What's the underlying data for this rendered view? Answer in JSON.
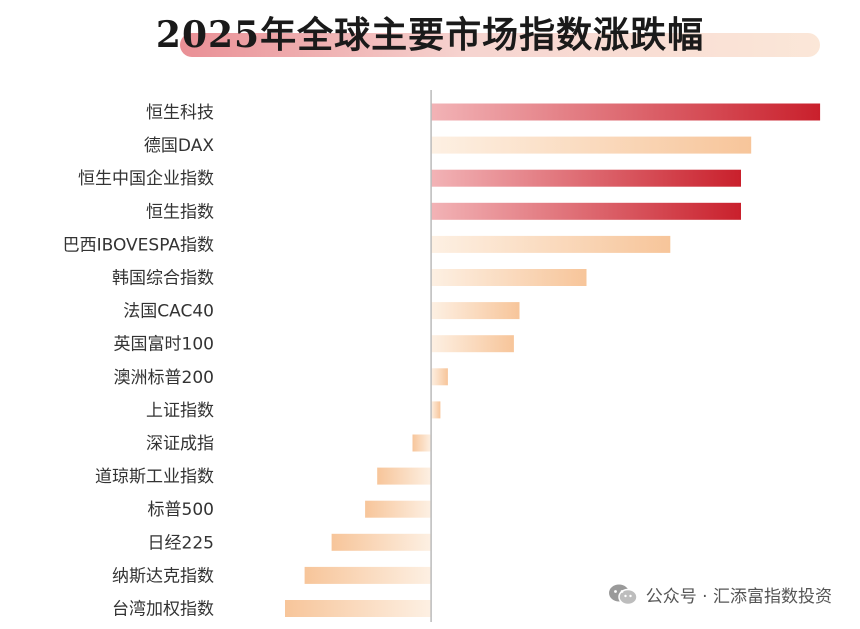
{
  "chart_data": {
    "type": "bar",
    "orientation": "horizontal",
    "title": "2025年全球主要市场指数涨跌幅",
    "xlabel": "",
    "ylabel": "",
    "categories": [
      "恒生科技",
      "德国DAX",
      "恒生中国企业指数",
      "恒生指数",
      "巴西IBOVESPA指数",
      "韩国综合指数",
      "法国CAC40",
      "英国富时100",
      "澳洲标普200",
      "上证指数",
      "深证成指",
      "道琼斯工业指数",
      "标普500",
      "日经225",
      "纳斯达克指数",
      "台湾加权指数"
    ],
    "values": [
      41.8,
      34.4,
      33.3,
      33.3,
      25.7,
      16.7,
      9.5,
      8.9,
      1.8,
      1.0,
      -2.0,
      -5.8,
      -7.1,
      -10.7,
      -13.6,
      -15.7
    ],
    "xlim": [
      -20,
      42
    ],
    "highlight": [
      true,
      false,
      true,
      true,
      false,
      false,
      false,
      false,
      false,
      false,
      false,
      false,
      false,
      false,
      false,
      false
    ],
    "colors": {
      "highlight_start": "#f2b3b6",
      "highlight_end": "#c9202c",
      "normal_start": "#fdf0e3",
      "normal_end": "#f7c59a",
      "axis": "#bbbbbb"
    },
    "grid": false,
    "legend": "none"
  },
  "watermark": {
    "icon": "wechat-icon",
    "text": "公众号 · 汇添富指数投资"
  }
}
